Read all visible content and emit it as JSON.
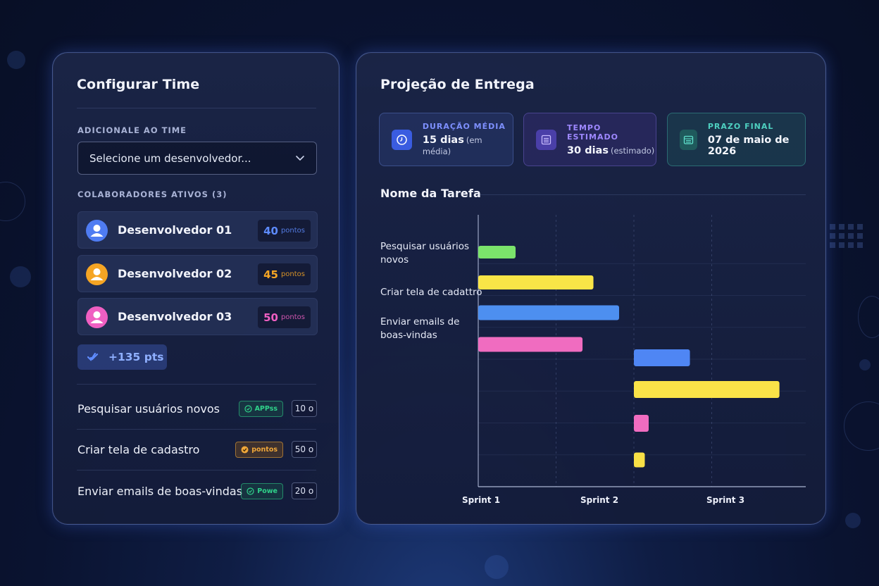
{
  "team_panel": {
    "title": "Configurar Time",
    "add_label": "ADICIONALE AO TIME",
    "select_placeholder": "Selecione um desenvolvedor...",
    "active_label": "COLABORADORES ATIVOS (3)",
    "developers": [
      {
        "name": "Desenvolvedor 01",
        "points": "40",
        "unit": "pontos",
        "color": "#4f7cf2"
      },
      {
        "name": "Desenvolvedor 02",
        "points": "45",
        "unit": "pontos",
        "color": "#f5a524"
      },
      {
        "name": "Desenvolvedor 03",
        "points": "50",
        "unit": "pontos",
        "color": "#ef5fc2"
      }
    ],
    "total": "+135 pts",
    "tasks": [
      {
        "name": "Pesquisar usuários novos",
        "tag": "APPss",
        "points": "10 o",
        "tag_color": "#2fd28a"
      },
      {
        "name": "Criar tela de cadastro",
        "tag": "pontos",
        "points": "50 o",
        "tag_color": "#f0a73a"
      },
      {
        "name": "Enviar emails de boas-vindas",
        "tag": "Powe",
        "points": "20 o",
        "tag_color": "#2fd28a"
      }
    ]
  },
  "projection_panel": {
    "title": "Projeção de Entrega",
    "stats": [
      {
        "label": "DURAÇÃO MÉDIA",
        "value": "15 dias",
        "sub": "(em média)",
        "color": "#7e90ff",
        "icon": "clock-icon"
      },
      {
        "label": "TEMPO ESTIMADO",
        "value": "30 dias",
        "sub": "(estimado)",
        "color": "#9e88ff",
        "icon": "list-icon"
      },
      {
        "label": "PRAZO FINAL",
        "value": "07 de maio de 2026",
        "sub": "",
        "color": "#4ed0c0",
        "icon": "calendar-icon"
      }
    ],
    "gantt_title": "Nome da Tarefa",
    "task_labels": [
      "Pesquisar usuários novos",
      "Criar tela de cadattro",
      "Enviar emails de boas-vindas"
    ]
  },
  "chart_data": {
    "type": "bar",
    "orientation": "horizontal",
    "x_ticks": [
      "Sprint 1",
      "Sprint 2",
      "Sprint 3"
    ],
    "xlim": [
      0,
      4
    ],
    "bars": [
      {
        "start": 0.0,
        "end": 0.48,
        "color": "#7be36b"
      },
      {
        "start": 0.0,
        "end": 1.48,
        "color": "#f9e547"
      },
      {
        "start": 0.0,
        "end": 1.81,
        "color": "#4d8ff0"
      },
      {
        "start": 0.0,
        "end": 1.34,
        "color": "#f06cc0"
      },
      {
        "start": 2.0,
        "end": 2.72,
        "color": "#4f86f4"
      },
      {
        "start": 2.0,
        "end": 3.87,
        "color": "#fae348"
      },
      {
        "start": 2.0,
        "end": 2.19,
        "color": "#f06cc0"
      },
      {
        "start": 2.0,
        "end": 2.14,
        "color": "#f8e046"
      }
    ]
  }
}
